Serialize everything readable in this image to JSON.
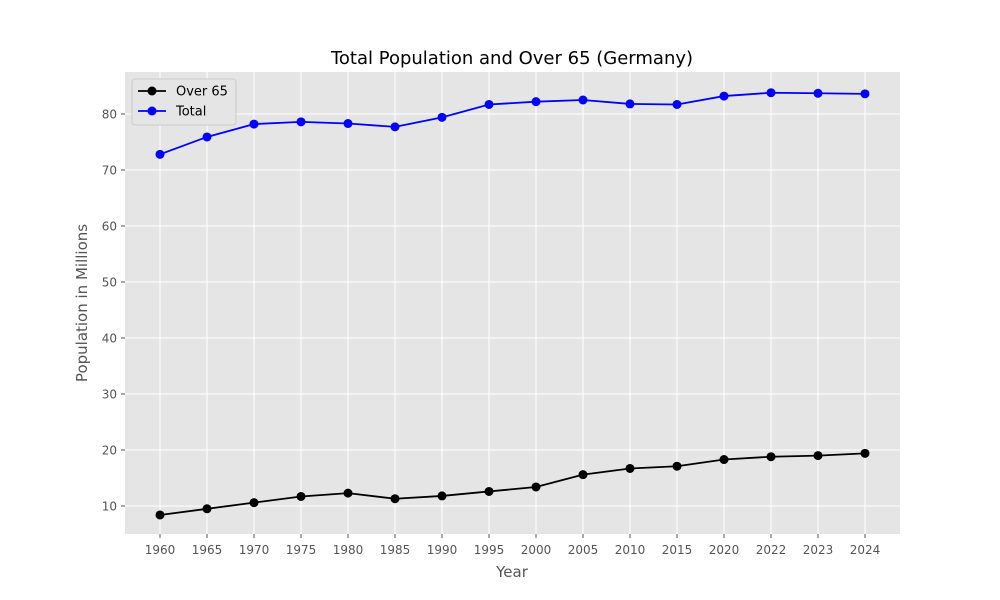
{
  "chart_data": {
    "type": "line",
    "title": "Total Population and Over 65 (Germany)",
    "xlabel": "Year",
    "ylabel": "Population in Millions",
    "x": [
      "1960",
      "1965",
      "1970",
      "1975",
      "1980",
      "1985",
      "1990",
      "1995",
      "2000",
      "2005",
      "2010",
      "2015",
      "2020",
      "2022",
      "2023",
      "2024"
    ],
    "ylim": [
      5,
      87.5
    ],
    "yticks": [
      10,
      20,
      30,
      40,
      50,
      60,
      70,
      80
    ],
    "grid": true,
    "legend": "top-left",
    "series": [
      {
        "name": "Over 65",
        "color": "#000000",
        "values": [
          8.4,
          9.5,
          10.6,
          11.7,
          12.3,
          11.3,
          11.8,
          12.6,
          13.4,
          15.6,
          16.7,
          17.1,
          18.3,
          18.8,
          19.0,
          19.4
        ]
      },
      {
        "name": "Total",
        "color": "#0000ff",
        "values": [
          72.8,
          75.9,
          78.2,
          78.6,
          78.3,
          77.7,
          79.4,
          81.7,
          82.2,
          82.5,
          81.8,
          81.7,
          83.2,
          83.8,
          83.7,
          83.6
        ]
      }
    ]
  }
}
